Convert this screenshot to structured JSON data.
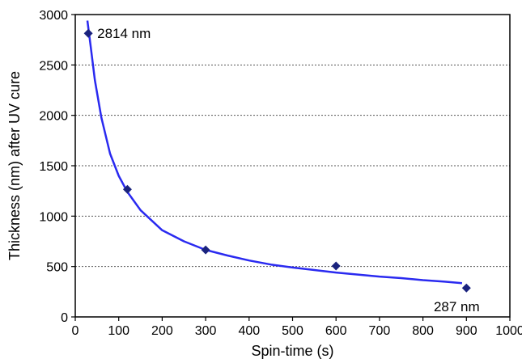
{
  "chart_data": {
    "type": "scatter",
    "title": "",
    "xlabel": "Spin-time (s)",
    "ylabel": "Thickness (nm) after UV cure",
    "xlim": [
      0,
      1000
    ],
    "ylim": [
      0,
      3000
    ],
    "x_ticks": [
      0,
      100,
      200,
      300,
      400,
      500,
      600,
      700,
      800,
      900,
      1000
    ],
    "y_ticks": [
      0,
      500,
      1000,
      1500,
      2000,
      2500,
      3000
    ],
    "grid": "horizontal-dotted",
    "legend": "none",
    "series": [
      {
        "values": [
          {
            "x": 30,
            "y": 2814
          },
          {
            "x": 120,
            "y": 1265
          },
          {
            "x": 300,
            "y": 665
          },
          {
            "x": 600,
            "y": 505
          },
          {
            "x": 900,
            "y": 287
          }
        ],
        "marker": "diamond",
        "color": "#1a237e"
      }
    ],
    "trend_line": {
      "color": "#2a2af0",
      "points": [
        {
          "x": 28,
          "y": 2940
        },
        {
          "x": 35,
          "y": 2700
        },
        {
          "x": 45,
          "y": 2350
        },
        {
          "x": 60,
          "y": 1980
        },
        {
          "x": 80,
          "y": 1620
        },
        {
          "x": 100,
          "y": 1400
        },
        {
          "x": 120,
          "y": 1240
        },
        {
          "x": 150,
          "y": 1060
        },
        {
          "x": 200,
          "y": 860
        },
        {
          "x": 250,
          "y": 750
        },
        {
          "x": 300,
          "y": 665
        },
        {
          "x": 350,
          "y": 610
        },
        {
          "x": 400,
          "y": 560
        },
        {
          "x": 450,
          "y": 520
        },
        {
          "x": 500,
          "y": 490
        },
        {
          "x": 550,
          "y": 465
        },
        {
          "x": 600,
          "y": 440
        },
        {
          "x": 650,
          "y": 420
        },
        {
          "x": 700,
          "y": 400
        },
        {
          "x": 750,
          "y": 385
        },
        {
          "x": 800,
          "y": 365
        },
        {
          "x": 850,
          "y": 350
        },
        {
          "x": 890,
          "y": 335
        }
      ]
    },
    "annotations": [
      {
        "text": "2814 nm",
        "x": 30,
        "y": 2814,
        "anchor": "right"
      },
      {
        "text": "287 nm",
        "x": 900,
        "y": 287,
        "anchor": "below"
      }
    ]
  }
}
